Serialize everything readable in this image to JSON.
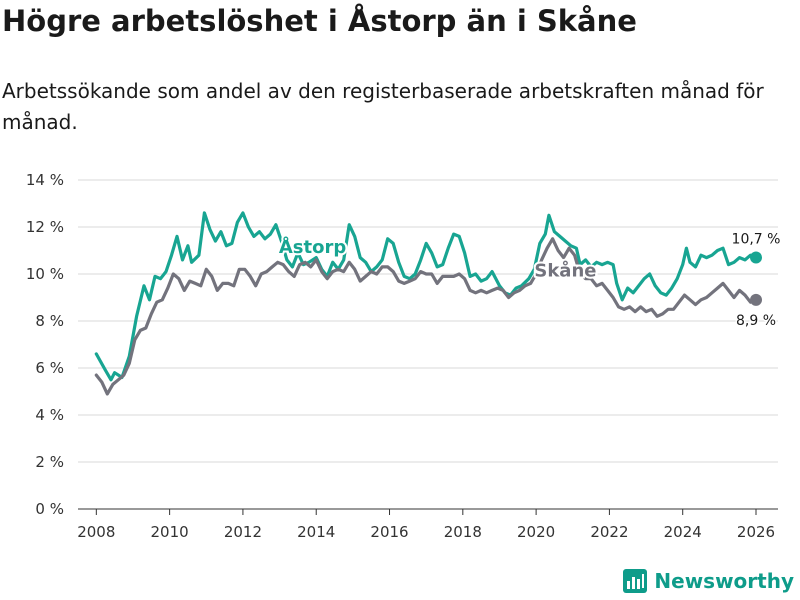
{
  "title": "Högre arbetslöshet i Åstorp än i Skåne",
  "subtitle": "Arbetssökande som andel av den registerbaserade arbetskraften månad för månad.",
  "brand": "Newsworthy",
  "colors": {
    "astorp": "#18a592",
    "skane": "#73737d",
    "grid": "#d9d9d9",
    "axis": "#333333"
  },
  "chart_data": {
    "type": "line",
    "title": "Högre arbetslöshet i Åstorp än i Skåne",
    "xlabel": "",
    "ylabel": "",
    "xlim": [
      2007.5,
      2026.6
    ],
    "ylim": [
      0,
      14
    ],
    "xticks": [
      2008,
      2010,
      2012,
      2014,
      2016,
      2018,
      2020,
      2022,
      2024,
      2026
    ],
    "xtick_labels": [
      "2008",
      "2010",
      "2012",
      "2014",
      "2016",
      "2018",
      "2020",
      "2022",
      "2024",
      "2026"
    ],
    "yticks": [
      0,
      2,
      4,
      6,
      8,
      10,
      12,
      14
    ],
    "ytick_labels": [
      "0 %",
      "2 %",
      "4 %",
      "6 %",
      "8 %",
      "10 %",
      "12 %",
      "14 %"
    ],
    "series": [
      {
        "name": "Åstorp",
        "label": "Åstorp",
        "end_label": "10,7 %",
        "color": "#18a592",
        "points": [
          [
            2008.0,
            6.6
          ],
          [
            2008.25,
            5.9
          ],
          [
            2008.4,
            5.5
          ],
          [
            2008.5,
            5.8
          ],
          [
            2008.7,
            5.6
          ],
          [
            2008.9,
            6.5
          ],
          [
            2009.1,
            8.2
          ],
          [
            2009.3,
            9.5
          ],
          [
            2009.45,
            8.9
          ],
          [
            2009.6,
            9.9
          ],
          [
            2009.75,
            9.8
          ],
          [
            2009.9,
            10.1
          ],
          [
            2010.05,
            10.8
          ],
          [
            2010.2,
            11.6
          ],
          [
            2010.35,
            10.6
          ],
          [
            2010.5,
            11.2
          ],
          [
            2010.6,
            10.5
          ],
          [
            2010.8,
            10.8
          ],
          [
            2010.95,
            12.6
          ],
          [
            2011.1,
            11.9
          ],
          [
            2011.25,
            11.4
          ],
          [
            2011.4,
            11.8
          ],
          [
            2011.55,
            11.2
          ],
          [
            2011.7,
            11.3
          ],
          [
            2011.85,
            12.2
          ],
          [
            2012.0,
            12.6
          ],
          [
            2012.15,
            12.0
          ],
          [
            2012.3,
            11.6
          ],
          [
            2012.45,
            11.8
          ],
          [
            2012.6,
            11.5
          ],
          [
            2012.75,
            11.7
          ],
          [
            2012.9,
            12.1
          ],
          [
            2013.05,
            11.4
          ],
          [
            2013.2,
            10.6
          ],
          [
            2013.35,
            10.3
          ],
          [
            2013.5,
            10.9
          ],
          [
            2013.65,
            10.4
          ],
          [
            2013.8,
            10.5
          ],
          [
            2014.0,
            10.7
          ],
          [
            2014.15,
            10.2
          ],
          [
            2014.3,
            9.9
          ],
          [
            2014.45,
            10.5
          ],
          [
            2014.6,
            10.2
          ],
          [
            2014.75,
            10.6
          ],
          [
            2014.9,
            12.1
          ],
          [
            2015.05,
            11.6
          ],
          [
            2015.2,
            10.7
          ],
          [
            2015.35,
            10.5
          ],
          [
            2015.5,
            10.1
          ],
          [
            2015.65,
            10.3
          ],
          [
            2015.8,
            10.6
          ],
          [
            2015.95,
            11.5
          ],
          [
            2016.1,
            11.3
          ],
          [
            2016.25,
            10.5
          ],
          [
            2016.4,
            9.9
          ],
          [
            2016.55,
            9.8
          ],
          [
            2016.7,
            10.0
          ],
          [
            2016.85,
            10.6
          ],
          [
            2017.0,
            11.3
          ],
          [
            2017.15,
            10.9
          ],
          [
            2017.3,
            10.3
          ],
          [
            2017.45,
            10.4
          ],
          [
            2017.6,
            11.1
          ],
          [
            2017.75,
            11.7
          ],
          [
            2017.9,
            11.6
          ],
          [
            2018.05,
            10.9
          ],
          [
            2018.2,
            9.9
          ],
          [
            2018.35,
            10.0
          ],
          [
            2018.5,
            9.7
          ],
          [
            2018.65,
            9.8
          ],
          [
            2018.8,
            10.1
          ],
          [
            2019.0,
            9.5
          ],
          [
            2019.15,
            9.2
          ],
          [
            2019.3,
            9.1
          ],
          [
            2019.45,
            9.4
          ],
          [
            2019.6,
            9.5
          ],
          [
            2019.8,
            9.8
          ],
          [
            2019.95,
            10.2
          ],
          [
            2020.1,
            11.3
          ],
          [
            2020.25,
            11.7
          ],
          [
            2020.35,
            12.5
          ],
          [
            2020.5,
            11.8
          ],
          [
            2020.65,
            11.6
          ],
          [
            2020.8,
            11.4
          ],
          [
            2020.95,
            11.2
          ],
          [
            2021.1,
            11.1
          ],
          [
            2021.2,
            10.4
          ],
          [
            2021.35,
            10.6
          ],
          [
            2021.5,
            10.3
          ],
          [
            2021.65,
            10.5
          ],
          [
            2021.8,
            10.4
          ],
          [
            2021.95,
            10.5
          ],
          [
            2022.1,
            10.4
          ],
          [
            2022.2,
            9.6
          ],
          [
            2022.35,
            8.9
          ],
          [
            2022.5,
            9.4
          ],
          [
            2022.65,
            9.2
          ],
          [
            2022.8,
            9.5
          ],
          [
            2022.95,
            9.8
          ],
          [
            2023.1,
            10.0
          ],
          [
            2023.25,
            9.5
          ],
          [
            2023.4,
            9.2
          ],
          [
            2023.55,
            9.1
          ],
          [
            2023.7,
            9.4
          ],
          [
            2023.85,
            9.8
          ],
          [
            2024.0,
            10.4
          ],
          [
            2024.1,
            11.1
          ],
          [
            2024.2,
            10.5
          ],
          [
            2024.35,
            10.3
          ],
          [
            2024.5,
            10.8
          ],
          [
            2024.65,
            10.7
          ],
          [
            2024.8,
            10.8
          ],
          [
            2024.95,
            11.0
          ],
          [
            2025.1,
            11.1
          ],
          [
            2025.25,
            10.4
          ],
          [
            2025.4,
            10.5
          ],
          [
            2025.55,
            10.7
          ],
          [
            2025.7,
            10.6
          ],
          [
            2025.85,
            10.8
          ],
          [
            2026.0,
            10.7
          ]
        ]
      },
      {
        "name": "Skåne",
        "label": "Skåne",
        "end_label": "8,9 %",
        "color": "#73737d",
        "points": [
          [
            2008.0,
            5.7
          ],
          [
            2008.15,
            5.4
          ],
          [
            2008.3,
            4.9
          ],
          [
            2008.45,
            5.3
          ],
          [
            2008.6,
            5.5
          ],
          [
            2008.75,
            5.7
          ],
          [
            2008.9,
            6.2
          ],
          [
            2009.05,
            7.2
          ],
          [
            2009.2,
            7.6
          ],
          [
            2009.35,
            7.7
          ],
          [
            2009.5,
            8.3
          ],
          [
            2009.65,
            8.8
          ],
          [
            2009.8,
            8.9
          ],
          [
            2009.95,
            9.4
          ],
          [
            2010.1,
            10.0
          ],
          [
            2010.25,
            9.8
          ],
          [
            2010.4,
            9.3
          ],
          [
            2010.55,
            9.7
          ],
          [
            2010.7,
            9.6
          ],
          [
            2010.85,
            9.5
          ],
          [
            2011.0,
            10.2
          ],
          [
            2011.15,
            9.9
          ],
          [
            2011.3,
            9.3
          ],
          [
            2011.45,
            9.6
          ],
          [
            2011.6,
            9.6
          ],
          [
            2011.75,
            9.5
          ],
          [
            2011.9,
            10.2
          ],
          [
            2012.05,
            10.2
          ],
          [
            2012.2,
            9.9
          ],
          [
            2012.35,
            9.5
          ],
          [
            2012.5,
            10.0
          ],
          [
            2012.65,
            10.1
          ],
          [
            2012.8,
            10.3
          ],
          [
            2012.95,
            10.5
          ],
          [
            2013.1,
            10.4
          ],
          [
            2013.25,
            10.1
          ],
          [
            2013.4,
            9.9
          ],
          [
            2013.55,
            10.4
          ],
          [
            2013.7,
            10.5
          ],
          [
            2013.85,
            10.3
          ],
          [
            2014.0,
            10.6
          ],
          [
            2014.15,
            10.1
          ],
          [
            2014.3,
            9.8
          ],
          [
            2014.45,
            10.1
          ],
          [
            2014.6,
            10.2
          ],
          [
            2014.75,
            10.1
          ],
          [
            2014.9,
            10.5
          ],
          [
            2015.05,
            10.2
          ],
          [
            2015.2,
            9.7
          ],
          [
            2015.35,
            9.9
          ],
          [
            2015.5,
            10.1
          ],
          [
            2015.65,
            10.0
          ],
          [
            2015.8,
            10.3
          ],
          [
            2015.95,
            10.3
          ],
          [
            2016.1,
            10.1
          ],
          [
            2016.25,
            9.7
          ],
          [
            2016.4,
            9.6
          ],
          [
            2016.55,
            9.7
          ],
          [
            2016.7,
            9.8
          ],
          [
            2016.85,
            10.1
          ],
          [
            2017.0,
            10.0
          ],
          [
            2017.15,
            10.0
          ],
          [
            2017.3,
            9.6
          ],
          [
            2017.45,
            9.9
          ],
          [
            2017.6,
            9.9
          ],
          [
            2017.75,
            9.9
          ],
          [
            2017.9,
            10.0
          ],
          [
            2018.05,
            9.8
          ],
          [
            2018.2,
            9.3
          ],
          [
            2018.35,
            9.2
          ],
          [
            2018.5,
            9.3
          ],
          [
            2018.65,
            9.2
          ],
          [
            2018.8,
            9.3
          ],
          [
            2018.95,
            9.4
          ],
          [
            2019.1,
            9.3
          ],
          [
            2019.25,
            9.0
          ],
          [
            2019.4,
            9.2
          ],
          [
            2019.55,
            9.3
          ],
          [
            2019.7,
            9.5
          ],
          [
            2019.85,
            9.6
          ],
          [
            2020.0,
            10.0
          ],
          [
            2020.15,
            10.6
          ],
          [
            2020.3,
            11.1
          ],
          [
            2020.45,
            11.5
          ],
          [
            2020.6,
            11.0
          ],
          [
            2020.75,
            10.7
          ],
          [
            2020.9,
            11.1
          ],
          [
            2021.05,
            10.8
          ],
          [
            2021.2,
            10.0
          ],
          [
            2021.35,
            9.8
          ],
          [
            2021.5,
            9.8
          ],
          [
            2021.65,
            9.5
          ],
          [
            2021.8,
            9.6
          ],
          [
            2021.95,
            9.3
          ],
          [
            2022.1,
            9.0
          ],
          [
            2022.25,
            8.6
          ],
          [
            2022.4,
            8.5
          ],
          [
            2022.55,
            8.6
          ],
          [
            2022.7,
            8.4
          ],
          [
            2022.85,
            8.6
          ],
          [
            2023.0,
            8.4
          ],
          [
            2023.15,
            8.5
          ],
          [
            2023.3,
            8.2
          ],
          [
            2023.45,
            8.3
          ],
          [
            2023.6,
            8.5
          ],
          [
            2023.75,
            8.5
          ],
          [
            2023.9,
            8.8
          ],
          [
            2024.05,
            9.1
          ],
          [
            2024.2,
            8.9
          ],
          [
            2024.35,
            8.7
          ],
          [
            2024.5,
            8.9
          ],
          [
            2024.65,
            9.0
          ],
          [
            2024.8,
            9.2
          ],
          [
            2024.95,
            9.4
          ],
          [
            2025.1,
            9.6
          ],
          [
            2025.25,
            9.3
          ],
          [
            2025.4,
            9.0
          ],
          [
            2025.55,
            9.3
          ],
          [
            2025.7,
            9.1
          ],
          [
            2025.85,
            8.8
          ],
          [
            2026.0,
            8.9
          ]
        ]
      }
    ]
  }
}
